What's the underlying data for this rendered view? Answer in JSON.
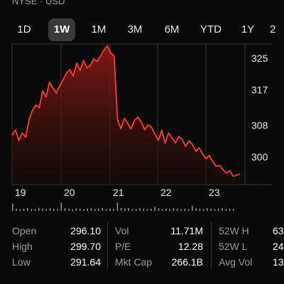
{
  "header": {
    "exchange": "NYSE · USD"
  },
  "range_tabs": [
    {
      "label": "1D",
      "active": false
    },
    {
      "label": "1W",
      "active": true
    },
    {
      "label": "1M",
      "active": false
    },
    {
      "label": "3M",
      "active": false
    },
    {
      "label": "6M",
      "active": false
    },
    {
      "label": "YTD",
      "active": false
    },
    {
      "label": "1Y",
      "active": false
    },
    {
      "label": "2",
      "active": false
    }
  ],
  "colors": {
    "line": "#ff3b30",
    "fill_top": "#8a1a14",
    "fill_bottom": "#1a0a0a",
    "grid": "#3a3a3c",
    "axis_text": "#e6e6e6",
    "volume_bar": "#8e8e93"
  },
  "chart_data": {
    "type": "area",
    "title": "",
    "xlabel": "",
    "ylabel": "",
    "x_tick_labels": [
      "19",
      "20",
      "21",
      "22",
      "23"
    ],
    "y_tick_labels": [
      "325",
      "317",
      "308",
      "300"
    ],
    "ylim": [
      293,
      329
    ],
    "series": [
      {
        "values": [
          305.5,
          306.8,
          304.2,
          306.1,
          305.0,
          309.5,
          311.8,
          313.2,
          312.5,
          316.8,
          315.2,
          318.9,
          317.5,
          316.2,
          318.0,
          319.6,
          321.3,
          322.1,
          320.5,
          323.8,
          321.9,
          324.4,
          322.6,
          323.1,
          324.9,
          324.2,
          325.6,
          327.1,
          328.2,
          326.4,
          325.6,
          309.4,
          307.2,
          309.8,
          308.5,
          307.1,
          309.3,
          310.1,
          308.8,
          306.9,
          308.2,
          307.5,
          305.8,
          304.2,
          306.8,
          303.5,
          306.1,
          304.8,
          303.6,
          305.2,
          304.5,
          302.7,
          304.1,
          303.2,
          301.5,
          302.3,
          300.8,
          299.6,
          300.4,
          298.8,
          297.6,
          297.9,
          296.8,
          295.9,
          296.5,
          295.1,
          295.4,
          295.7
        ]
      }
    ],
    "volume_bars": [
      0.8,
      0.25,
      0.2,
      0.25,
      0.3,
      0.2,
      0.2,
      0.3,
      0.25,
      0.2,
      0.3,
      0.25,
      0.2,
      0.9,
      0.3,
      0.25,
      0.2,
      0.3,
      0.25,
      0.2,
      0.25,
      0.3,
      0.2,
      0.25,
      0.3,
      0.2,
      0.25,
      0.2,
      0.9,
      0.3,
      0.25,
      0.3,
      0.2,
      0.2,
      0.3,
      0.25,
      0.2,
      0.25,
      0.45,
      0.3,
      0.2,
      0.25,
      0.2,
      0.3,
      0.25,
      0.2,
      0.25,
      0.2,
      0.55,
      0.3,
      0.25,
      0.2,
      0.3,
      0.25,
      0.2,
      0.25,
      0.3,
      0.2,
      0.25,
      0.2
    ]
  },
  "stats": [
    {
      "label": "Open",
      "value": "296.10"
    },
    {
      "label": "High",
      "value": "299.70"
    },
    {
      "label": "Low",
      "value": "291.64"
    },
    {
      "label": "Vol",
      "value": "11.71M"
    },
    {
      "label": "P/E",
      "value": "12.28"
    },
    {
      "label": "Mkt Cap",
      "value": "266.1B"
    },
    {
      "label": "52W H",
      "value": "63"
    },
    {
      "label": "52W L",
      "value": "24"
    },
    {
      "label": "Avg Vol",
      "value": "13"
    }
  ]
}
